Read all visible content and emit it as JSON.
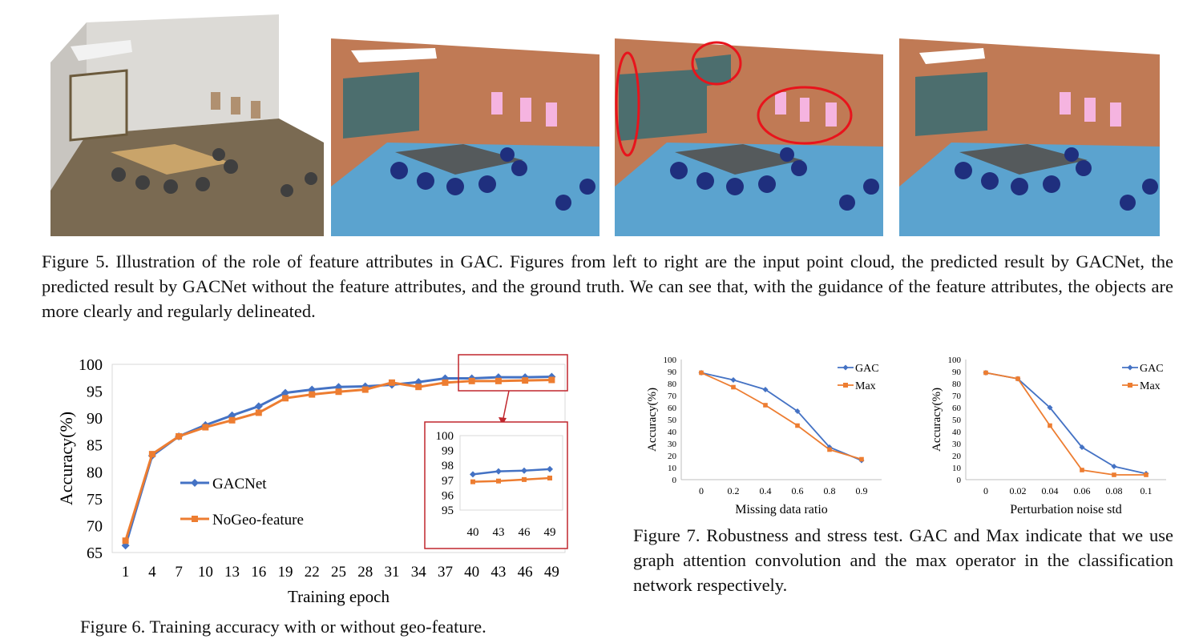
{
  "figure5": {
    "panels": [
      "input point cloud",
      "predicted result by GACNet",
      "predicted result without feature attributes",
      "ground truth"
    ],
    "caption": "Figure 5. Illustration of the role of feature attributes in GAC. Figures from left to right are the input point cloud, the predicted result by GACNet, the predicted result by GACNet without the feature attributes, and the ground truth. We can see that, with the guidance of the feature attributes, the objects are more clearly and regularly delineated.",
    "colors": {
      "wall": "#c07a55",
      "floor": "#5ba3cf",
      "board": "#4c6e6e",
      "chair": "#1f2f7e",
      "table": "#555a5c",
      "painting": "#f5b4e0",
      "error_circle": "#e8141c"
    }
  },
  "figure6": {
    "caption": "Figure 6. Training accuracy with or without geo-feature.",
    "chart_data": {
      "type": "line",
      "x": [
        1,
        4,
        7,
        10,
        13,
        16,
        19,
        22,
        25,
        28,
        31,
        34,
        37,
        40,
        43,
        46,
        49
      ],
      "xlabel": "Training epoch",
      "ylabel": "Accuracy(%)",
      "ylim": [
        65,
        100
      ],
      "yticks": [
        65,
        70,
        75,
        80,
        85,
        90,
        95,
        100
      ],
      "series": [
        {
          "name": "GACNet",
          "color": "#4472c4",
          "values": [
            66.3,
            83.0,
            86.6,
            88.7,
            90.5,
            92.2,
            94.7,
            95.3,
            95.8,
            95.9,
            96.2,
            96.7,
            97.4,
            97.4,
            97.6,
            97.6,
            97.7
          ]
        },
        {
          "name": "NoGeo-feature",
          "color": "#ed7d31",
          "values": [
            67.2,
            83.3,
            86.6,
            88.3,
            89.6,
            91.0,
            93.7,
            94.4,
            94.9,
            95.3,
            96.6,
            95.8,
            96.6,
            96.9,
            96.9,
            97.0,
            97.1
          ]
        }
      ],
      "inset": {
        "x": [
          40,
          43,
          46,
          49
        ],
        "ylim": [
          95,
          100
        ],
        "yticks": [
          95,
          96,
          97,
          98,
          99,
          100
        ],
        "series": [
          {
            "name": "GACNet",
            "values": [
              97.4,
              97.6,
              97.65,
              97.75
            ]
          },
          {
            "name": "NoGeo-feature",
            "values": [
              96.9,
              96.95,
              97.05,
              97.15
            ]
          }
        ]
      }
    }
  },
  "figure7": {
    "caption": "Figure 7. Robustness and stress test. GAC and Max indicate that we use graph attention convolution and the max operator in the classification network respectively.",
    "chart_data": [
      {
        "type": "line",
        "categories": [
          "0",
          "0.2",
          "0.4",
          "0.6",
          "0.8",
          "0.9"
        ],
        "xlabel": "Missing data ratio",
        "ylabel": "Accuracy(%)",
        "ylim": [
          0,
          100
        ],
        "yticks": [
          0,
          10,
          20,
          30,
          40,
          50,
          60,
          70,
          80,
          90,
          100
        ],
        "series": [
          {
            "name": "GAC",
            "color": "#4472c4",
            "values": [
              89,
              83,
              75,
              57,
              27,
              16
            ]
          },
          {
            "name": "Max",
            "color": "#ed7d31",
            "values": [
              89,
              77,
              62,
              45,
              25,
              17
            ]
          }
        ]
      },
      {
        "type": "line",
        "categories": [
          "0",
          "0.02",
          "0.04",
          "0.06",
          "0.08",
          "0.1"
        ],
        "xlabel": "Perturbation noise std",
        "ylabel": "Accuracy(%)",
        "ylim": [
          0,
          100
        ],
        "yticks": [
          0,
          10,
          20,
          30,
          40,
          50,
          60,
          70,
          80,
          90,
          100
        ],
        "series": [
          {
            "name": "GAC",
            "color": "#4472c4",
            "values": [
              89,
              84,
              60,
              27,
              11,
              5
            ]
          },
          {
            "name": "Max",
            "color": "#ed7d31",
            "values": [
              89,
              84,
              45,
              8,
              4,
              4
            ]
          }
        ]
      }
    ]
  }
}
